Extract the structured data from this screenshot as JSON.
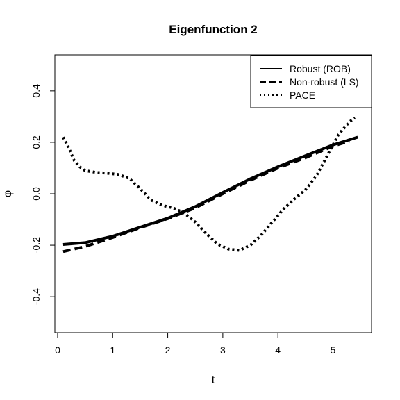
{
  "chart_data": {
    "type": "line",
    "title": "Eigenfunction 2",
    "xlabel": "t",
    "ylabel": "φ",
    "xlim": [
      -0.05,
      5.7
    ],
    "ylim": [
      -0.54,
      0.54
    ],
    "xticks": [
      0,
      1,
      2,
      3,
      4,
      5
    ],
    "yticks": [
      -0.4,
      -0.2,
      0.0,
      0.2,
      0.4
    ],
    "xtick_labels": [
      "0",
      "1",
      "2",
      "3",
      "4",
      "5"
    ],
    "ytick_labels": [
      "-0.4",
      "-0.2",
      "0.0",
      "0.2",
      "0.4"
    ],
    "grid": false,
    "legend_position": "top-right",
    "series": [
      {
        "name": "Robust (ROB)",
        "style": "solid",
        "x": [
          0.1,
          0.5,
          1.0,
          1.5,
          2.0,
          2.5,
          3.0,
          3.5,
          4.0,
          4.5,
          5.0,
          5.45
        ],
        "y": [
          -0.197,
          -0.19,
          -0.165,
          -0.13,
          -0.095,
          -0.05,
          0.005,
          0.058,
          0.105,
          0.148,
          0.19,
          0.22
        ]
      },
      {
        "name": "Non-robust (LS)",
        "style": "dashed",
        "x": [
          0.1,
          0.5,
          1.0,
          1.5,
          2.0,
          2.5,
          3.0,
          3.5,
          4.0,
          4.5,
          5.0,
          5.3
        ],
        "y": [
          -0.225,
          -0.205,
          -0.17,
          -0.132,
          -0.097,
          -0.055,
          0.0,
          0.052,
          0.1,
          0.14,
          0.185,
          0.205
        ]
      },
      {
        "name": "PACE",
        "style": "dotted",
        "x": [
          0.1,
          0.2,
          0.3,
          0.4,
          0.5,
          0.7,
          0.9,
          1.1,
          1.3,
          1.5,
          1.7,
          1.9,
          2.1,
          2.3,
          2.5,
          2.7,
          2.9,
          3.1,
          3.3,
          3.5,
          3.7,
          3.9,
          4.1,
          4.3,
          4.5,
          4.7,
          4.9,
          5.1,
          5.3,
          5.4
        ],
        "y": [
          0.22,
          0.18,
          0.13,
          0.105,
          0.09,
          0.083,
          0.08,
          0.075,
          0.06,
          0.02,
          -0.025,
          -0.045,
          -0.055,
          -0.075,
          -0.11,
          -0.155,
          -0.195,
          -0.215,
          -0.22,
          -0.2,
          -0.16,
          -0.11,
          -0.06,
          -0.02,
          0.015,
          0.07,
          0.15,
          0.23,
          0.28,
          0.295
        ]
      }
    ]
  }
}
